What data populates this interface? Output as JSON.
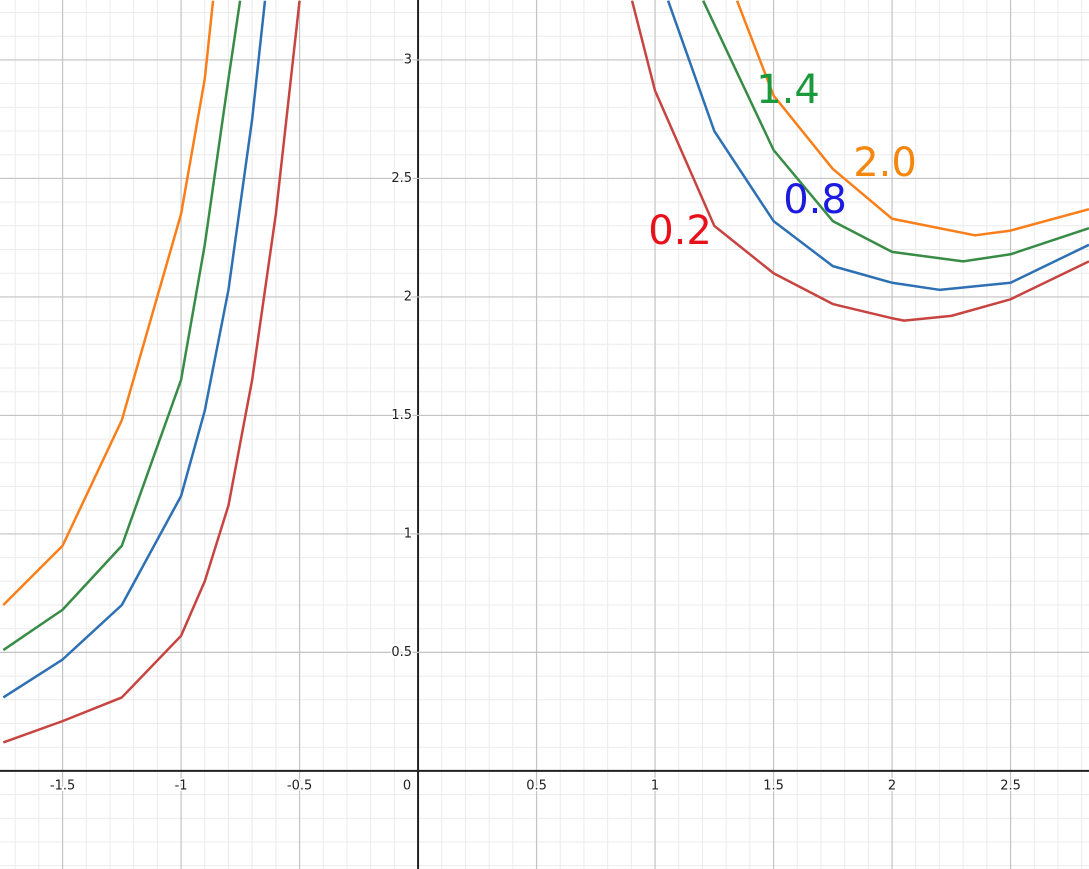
{
  "chart_data": {
    "type": "line",
    "xlim": [
      -1.764,
      2.831
    ],
    "ylim": [
      -0.414,
      3.253
    ],
    "xticks": [
      -1.5,
      -1,
      -0.5,
      0,
      0.5,
      1,
      1.5,
      2,
      2.5
    ],
    "yticks": [
      0,
      0.5,
      1,
      1.5,
      2,
      2.5,
      3
    ],
    "grid": true,
    "series": [
      {
        "name": "0.2",
        "color": "#c74440",
        "label_color": "#e8101b",
        "x": [
          -1.75,
          -1.5,
          -1.25,
          -1,
          -0.9,
          -0.8,
          -0.7,
          -0.6,
          -0.5,
          null,
          0.903,
          1,
          1.25,
          1.5,
          1.75,
          2,
          2.05,
          2.25,
          2.5,
          2.831
        ],
        "values": [
          0.12,
          0.21,
          0.31,
          0.57,
          0.8,
          1.12,
          1.65,
          2.35,
          3.25,
          null,
          3.25,
          2.87,
          2.3,
          2.1,
          1.97,
          1.91,
          1.9,
          1.92,
          1.99,
          2.15
        ]
      },
      {
        "name": "0.8",
        "color": "#2d70b3",
        "label_color": "#1a1ae0",
        "x": [
          -1.75,
          -1.5,
          -1.25,
          -1,
          -0.9,
          -0.8,
          -0.7,
          -0.646,
          null,
          1.055,
          1.25,
          1.5,
          1.75,
          2,
          2.2,
          2.5,
          2.831
        ],
        "values": [
          0.31,
          0.47,
          0.7,
          1.16,
          1.52,
          2.03,
          2.75,
          3.25,
          null,
          3.25,
          2.7,
          2.32,
          2.13,
          2.06,
          2.03,
          2.06,
          2.22
        ]
      },
      {
        "name": "1.4",
        "color": "#388c46",
        "label_color": "#1a9a3a",
        "x": [
          -1.75,
          -1.5,
          -1.25,
          -1,
          -0.9,
          -0.8,
          -0.751,
          null,
          1.203,
          1.5,
          1.75,
          2,
          2.3,
          2.5,
          2.831
        ],
        "values": [
          0.51,
          0.68,
          0.95,
          1.65,
          2.22,
          2.92,
          3.25,
          null,
          3.25,
          2.62,
          2.32,
          2.19,
          2.15,
          2.18,
          2.29
        ]
      },
      {
        "name": "2.0",
        "color": "#fa7e19",
        "label_color": "#f5870f",
        "x": [
          -1.75,
          -1.5,
          -1.25,
          -1,
          -0.9,
          -0.865,
          null,
          1.346,
          1.5,
          1.75,
          2,
          2.35,
          2.5,
          2.831
        ],
        "values": [
          0.7,
          0.95,
          1.48,
          2.35,
          2.92,
          3.25,
          null,
          3.25,
          2.85,
          2.54,
          2.33,
          2.26,
          2.28,
          2.37
        ]
      }
    ]
  }
}
